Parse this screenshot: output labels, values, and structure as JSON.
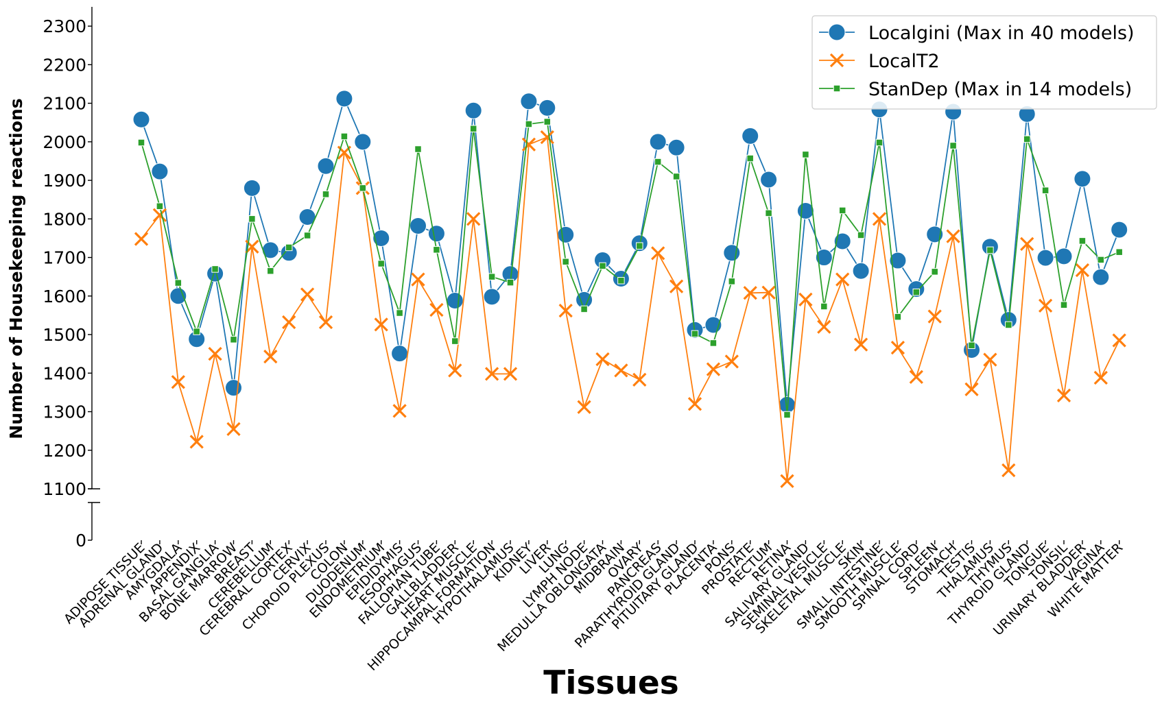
{
  "chart_data": {
    "type": "line",
    "xlabel": "Tissues",
    "ylabel": "Number of Housekeeping reactions",
    "y_axis_break": true,
    "y_ticks": [
      0,
      1100,
      1200,
      1300,
      1400,
      1500,
      1600,
      1700,
      1800,
      1900,
      2000,
      2100,
      2200,
      2300
    ],
    "ylim_upper": [
      1100,
      2350
    ],
    "legend_position": "top-right",
    "categories": [
      "ADIPOSE TISSUE",
      "ADRENAL GLAND",
      "AMYGDALA",
      "APPENDIX",
      "BASAL GANGLIA",
      "BONE MARROW",
      "BREAST",
      "CEREBELLUM",
      "CEREBRAL CORTEX",
      "CERVIX",
      "CHOROID PLEXUS",
      "COLON",
      "DUODENUM",
      "ENDOMETRIUM",
      "EPIDIDYMIS",
      "ESOPHAGUS",
      "FALLOPIAN TUBE",
      "GALLBLADDER",
      "HEART MUSCLE",
      "HIPPOCAMPAL FORMATION",
      "HYPOTHALAMUS",
      "KIDNEY",
      "LIVER",
      "LUNG",
      "LYMPH NODE",
      "MEDULLA OBLONGATA",
      "MIDBRAIN",
      "OVARY",
      "PANCREAS",
      "PARATHYROID GLAND",
      "PITUITARY GLAND",
      "PLACENTA",
      "PONS",
      "PROSTATE",
      "RECTUM",
      "RETINA",
      "SALIVARY GLAND",
      "SEMINAL VESICLE",
      "SKELETAL MUSCLE",
      "SKIN",
      "SMALL INTESTINE",
      "SMOOTH MUSCLE",
      "SPINAL CORD",
      "SPLEEN",
      "STOMACH",
      "TESTIS",
      "THALAMUS",
      "THYMUS",
      "THYROID GLAND",
      "TONGUE",
      "TONSIL",
      "URINARY BLADDER",
      "VAGINA",
      "WHITE MATTER"
    ],
    "series": [
      {
        "name": "Localgini (Max in 40 models)",
        "color": "#1f77b4",
        "marker": "circle",
        "values": [
          2058,
          1923,
          1600,
          1488,
          1658,
          1362,
          1880,
          1719,
          1712,
          1805,
          1937,
          2112,
          2000,
          1750,
          1451,
          1782,
          1762,
          1588,
          2081,
          1598,
          1657,
          2105,
          2088,
          1759,
          1590,
          1693,
          1645,
          1737,
          2000,
          1985,
          1512,
          1525,
          1712,
          2015,
          1902,
          1318,
          1821,
          1700,
          1742,
          1665,
          2084,
          1692,
          1618,
          1760,
          2078,
          1460,
          1728,
          1538,
          2072,
          1699,
          1703,
          1904,
          1649,
          1772
        ]
      },
      {
        "name": "LocalT2",
        "color": "#ff7f0e",
        "marker": "x",
        "values": [
          1748,
          1810,
          1377,
          1222,
          1450,
          1255,
          1728,
          1443,
          1532,
          1604,
          1532,
          1972,
          1880,
          1526,
          1302,
          1643,
          1564,
          1407,
          1800,
          1398,
          1398,
          1993,
          2012,
          1562,
          1312,
          1436,
          1407,
          1383,
          1711,
          1625,
          1320,
          1410,
          1430,
          1608,
          1609,
          1120,
          1591,
          1520,
          1643,
          1474,
          1800,
          1466,
          1390,
          1547,
          1755,
          1358,
          1435,
          1148,
          1735,
          1575,
          1342,
          1667,
          1388,
          1485
        ]
      },
      {
        "name": "StanDep (Max in 14 models)",
        "color": "#2ca02c",
        "marker": "square",
        "values": [
          1998,
          1833,
          1634,
          1508,
          1670,
          1487,
          1800,
          1665,
          1726,
          1757,
          1864,
          2014,
          1880,
          1684,
          1556,
          1981,
          1720,
          1483,
          2034,
          1650,
          1635,
          2046,
          2052,
          1689,
          1566,
          1678,
          1640,
          1730,
          1948,
          1910,
          1502,
          1478,
          1638,
          1957,
          1815,
          1292,
          1967,
          1573,
          1822,
          1758,
          1998,
          1546,
          1610,
          1663,
          1990,
          1472,
          1719,
          1525,
          2007,
          1874,
          1577,
          1743,
          1694,
          1714
        ]
      }
    ]
  }
}
